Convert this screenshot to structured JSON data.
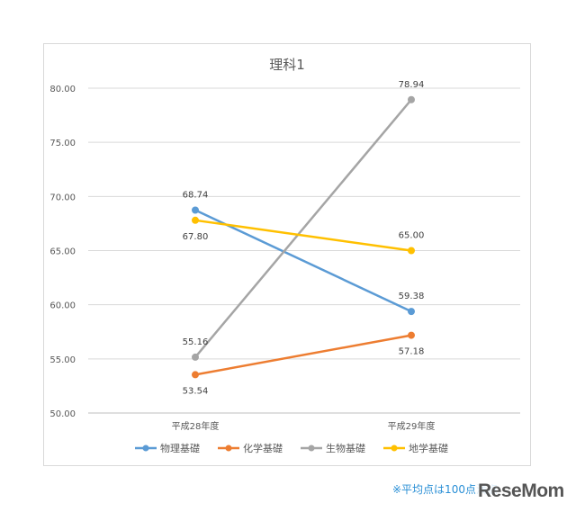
{
  "chart_data": {
    "type": "line",
    "title": "理科1",
    "categories": [
      "平成28年度",
      "平成29年度"
    ],
    "ylim": [
      50,
      80
    ],
    "yticks": [
      "50.00",
      "55.00",
      "60.00",
      "65.00",
      "70.00",
      "75.00",
      "80.00"
    ],
    "grid": true,
    "legend_position": "bottom",
    "series": [
      {
        "name": "物理基礎",
        "values": [
          68.74,
          59.38
        ],
        "labels": [
          "68.74",
          "59.38"
        ],
        "color": "#5b9bd5"
      },
      {
        "name": "化学基礎",
        "values": [
          53.54,
          57.18
        ],
        "labels": [
          "53.54",
          "57.18"
        ],
        "color": "#ed7d31"
      },
      {
        "name": "生物基礎",
        "values": [
          55.16,
          78.94
        ],
        "labels": [
          "55.16",
          "78.94"
        ],
        "color": "#a5a5a5"
      },
      {
        "name": "地学基礎",
        "values": [
          67.8,
          65.0
        ],
        "labels": [
          "67.80",
          "65.00"
        ],
        "color": "#ffc000"
      }
    ]
  },
  "footnote": "※平均点は100点満点",
  "logo": "ReseMom"
}
